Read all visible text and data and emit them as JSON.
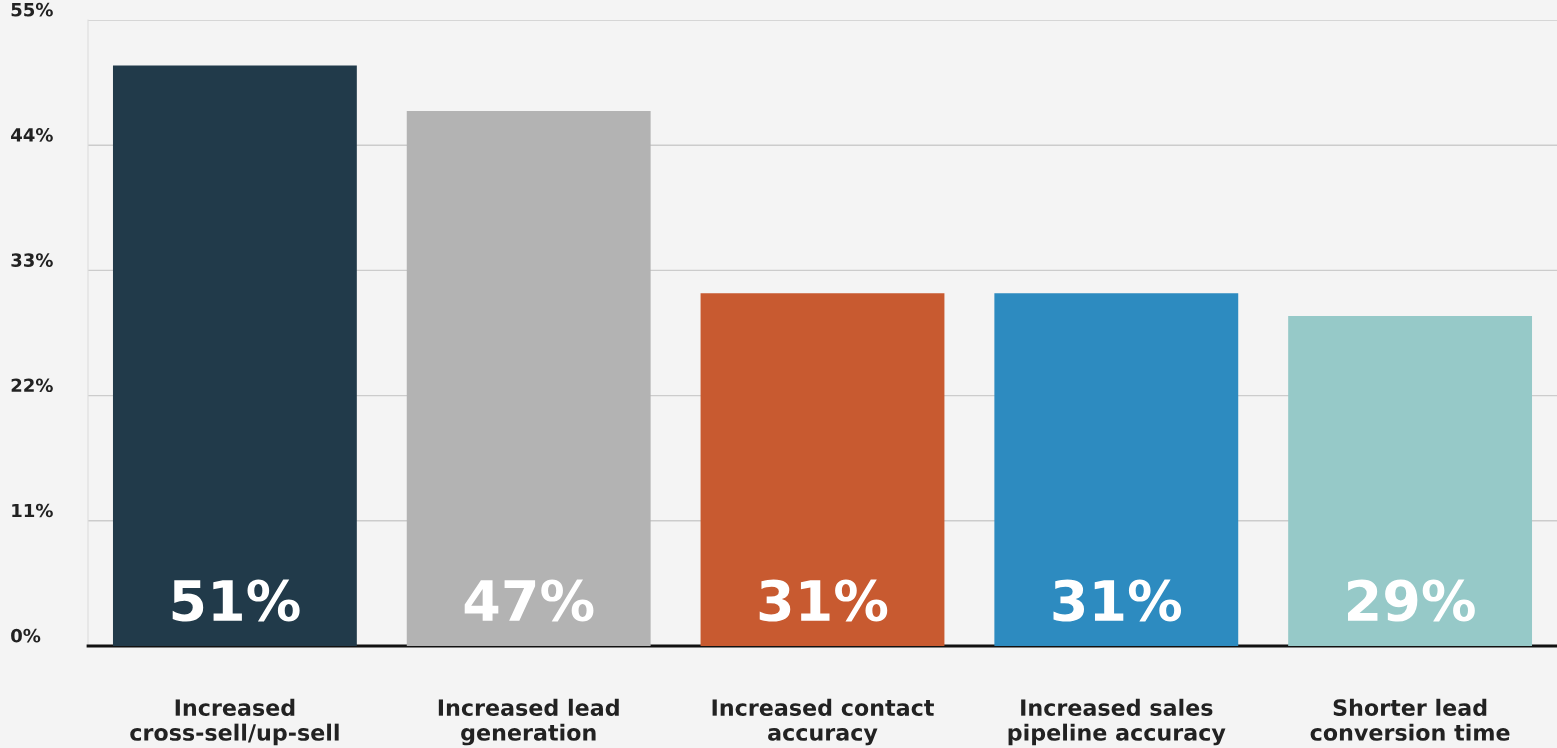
{
  "chart_data": {
    "type": "bar",
    "categories": [
      "Increased\ncross-sell/up-sell",
      "Increased lead\ngeneration",
      "Increased contact\naccuracy",
      "Increased sales\npipeline accuracy",
      "Shorter lead\nconversion time"
    ],
    "values": [
      51,
      47,
      31,
      31,
      29
    ],
    "colors": [
      "#213a4a",
      "#b3b3b3",
      "#c85a30",
      "#2d8bc0",
      "#96c9c8"
    ],
    "value_labels": [
      "51%",
      "47%",
      "31%",
      "31%",
      "29%"
    ],
    "ylim": [
      0,
      55
    ],
    "yticks": [
      {
        "value": 0,
        "label": "0%"
      },
      {
        "value": 11,
        "label": "11%"
      },
      {
        "value": 22,
        "label": "22%"
      },
      {
        "value": 33,
        "label": "33%"
      },
      {
        "value": 44,
        "label": "44%"
      },
      {
        "value": 55,
        "label": "55%"
      }
    ],
    "grid": "y"
  }
}
